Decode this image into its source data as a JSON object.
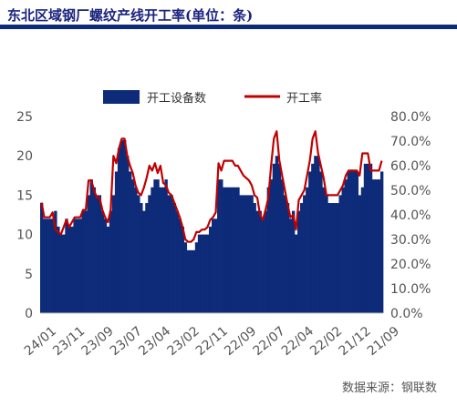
{
  "title": "东北区域钢厂螺纹产线开工率(单位：条)",
  "source": "数据来源：钢联数",
  "colors": {
    "bar": "#0d2b78",
    "line": "#c00000",
    "title": "#1a237e",
    "axis_text": "#555555"
  },
  "chart_data": {
    "type": "bar",
    "title": "东北区域钢厂螺纹产线开工率(单位：条)",
    "legend_position": "top",
    "x_tick_labels": [
      "24/01",
      "23/11",
      "23/09",
      "23/07",
      "23/04",
      "23/02",
      "22/11",
      "22/09",
      "22/07",
      "22/04",
      "22/02",
      "21/12",
      "21/09"
    ],
    "y_left": {
      "ticks": [
        "0",
        "5",
        "10",
        "15",
        "20",
        "25"
      ],
      "range": [
        0,
        25
      ]
    },
    "y_right": {
      "ticks": [
        "0.0%",
        "10.0%",
        "20.0%",
        "30.0%",
        "40.0%",
        "50.0%",
        "60.0%",
        "70.0%",
        "80.0%"
      ],
      "range": [
        0,
        0.8
      ]
    },
    "series": [
      {
        "name": "开工设备数",
        "type": "bar",
        "axis": "left",
        "values": [
          14,
          12,
          12,
          12,
          12,
          13,
          11,
          10,
          10,
          12,
          11,
          11,
          12,
          12,
          12,
          13,
          13,
          15,
          17,
          16,
          15,
          15,
          13,
          12,
          11,
          13,
          15,
          18,
          21,
          22,
          22,
          20,
          18,
          17,
          16,
          15,
          14,
          13,
          14,
          15,
          16,
          17,
          17,
          16,
          16,
          17,
          15,
          15,
          14,
          13,
          12,
          11,
          9,
          8,
          8,
          8,
          9,
          10,
          10,
          10,
          10,
          11,
          12,
          12,
          17,
          17,
          16,
          16,
          16,
          16,
          16,
          16,
          15,
          15,
          15,
          15,
          15,
          14,
          13,
          13,
          12,
          13,
          16,
          17,
          19,
          20,
          19,
          17,
          15,
          14,
          12,
          13,
          10,
          13,
          14,
          15,
          16,
          18,
          19,
          20,
          20,
          18,
          16,
          15,
          14,
          14,
          14,
          14,
          15,
          16,
          17,
          18,
          18,
          18,
          18,
          15,
          16,
          19,
          19,
          19,
          17,
          17,
          17,
          18
        ]
      },
      {
        "name": "开工率",
        "type": "line",
        "axis": "right",
        "values": [
          0.45,
          0.39,
          0.39,
          0.39,
          0.41,
          0.34,
          0.33,
          0.32,
          0.35,
          0.38,
          0.35,
          0.37,
          0.39,
          0.39,
          0.39,
          0.42,
          0.42,
          0.54,
          0.54,
          0.5,
          0.47,
          0.47,
          0.42,
          0.39,
          0.37,
          0.42,
          0.64,
          0.61,
          0.67,
          0.71,
          0.71,
          0.64,
          0.6,
          0.57,
          0.52,
          0.49,
          0.48,
          0.51,
          0.55,
          0.6,
          0.58,
          0.61,
          0.57,
          0.6,
          0.53,
          0.52,
          0.49,
          0.48,
          0.45,
          0.42,
          0.39,
          0.35,
          0.3,
          0.29,
          0.29,
          0.3,
          0.33,
          0.33,
          0.34,
          0.34,
          0.35,
          0.38,
          0.39,
          0.41,
          0.61,
          0.58,
          0.62,
          0.62,
          0.62,
          0.62,
          0.6,
          0.6,
          0.58,
          0.56,
          0.55,
          0.54,
          0.52,
          0.48,
          0.47,
          0.4,
          0.38,
          0.42,
          0.47,
          0.6,
          0.71,
          0.74,
          0.62,
          0.56,
          0.5,
          0.44,
          0.39,
          0.4,
          0.34,
          0.46,
          0.48,
          0.5,
          0.56,
          0.62,
          0.71,
          0.74,
          0.65,
          0.6,
          0.55,
          0.48,
          0.48,
          0.48,
          0.48,
          0.48,
          0.5,
          0.52,
          0.56,
          0.58,
          0.58,
          0.58,
          0.58,
          0.56,
          0.65,
          0.65,
          0.65,
          0.58,
          0.58,
          0.58,
          0.58,
          0.62
        ]
      }
    ]
  }
}
